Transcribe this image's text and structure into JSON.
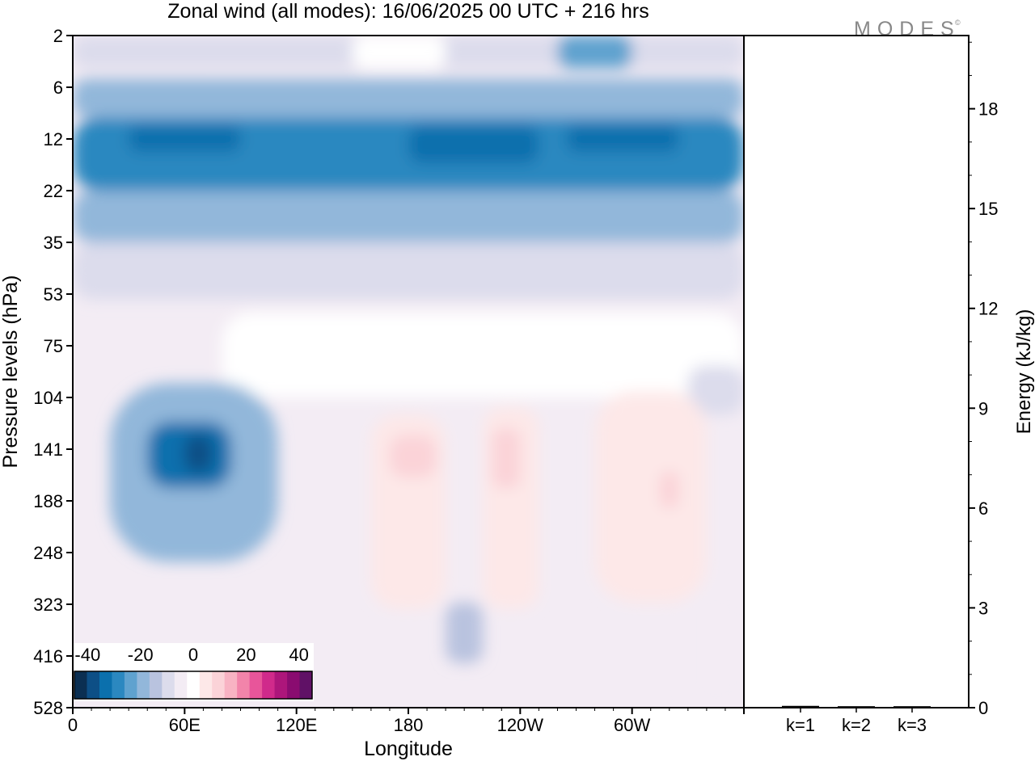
{
  "chart_data": [
    {
      "type": "heatmap",
      "title": "Zonal wind (all modes):  16/06/2025  00 UTC  + 216 hrs",
      "xlabel": "Longitude",
      "ylabel": "Pressure levels (hPa)",
      "x_ticks": [
        "0",
        "60E",
        "120E",
        "180",
        "120W",
        "60W"
      ],
      "x_tick_degrees": [
        0,
        60,
        120,
        180,
        240,
        300
      ],
      "xlim": [
        0,
        360
      ],
      "y_ticks": [
        "2",
        "6",
        "12",
        "22",
        "35",
        "53",
        "75",
        "104",
        "141",
        "188",
        "248",
        "323",
        "416",
        "528"
      ],
      "y_scale": "pressure levels, top to bottom",
      "colorbar": {
        "labels": [
          "-40",
          "-20",
          "0",
          "20",
          "40"
        ],
        "range": [
          -45,
          45
        ],
        "step": 5,
        "colors": [
          "#0b2f52",
          "#0d4f86",
          "#0b70ad",
          "#2b88c0",
          "#5fa2cf",
          "#92b7da",
          "#b9c3df",
          "#dcdcec",
          "#f3ecf4",
          "#ffffff",
          "#fde8e8",
          "#fbd3d8",
          "#f8b3c3",
          "#f284aa",
          "#e8559a",
          "#d02a8b",
          "#ad167b",
          "#8a0c70",
          "#601166"
        ]
      },
      "wind_fields": [
        {
          "lon": [
            0,
            360
          ],
          "plev": [
            2,
            4
          ],
          "value": -8
        },
        {
          "lon": [
            260,
            300
          ],
          "plev": [
            2,
            4
          ],
          "value": -25
        },
        {
          "lon": [
            150,
            200
          ],
          "plev": [
            2,
            4
          ],
          "value": 2
        },
        {
          "lon": [
            0,
            360
          ],
          "plev": [
            5,
            9
          ],
          "value": -18
        },
        {
          "lon": [
            0,
            360
          ],
          "plev": [
            9,
            22
          ],
          "value": -27
        },
        {
          "lon": [
            30,
            90
          ],
          "plev": [
            10,
            14
          ],
          "value": -33
        },
        {
          "lon": [
            180,
            250
          ],
          "plev": [
            10,
            16
          ],
          "value": -33
        },
        {
          "lon": [
            265,
            325
          ],
          "plev": [
            10,
            14
          ],
          "value": -33
        },
        {
          "lon": [
            0,
            360
          ],
          "plev": [
            22,
            35
          ],
          "value": -18
        },
        {
          "lon": [
            0,
            360
          ],
          "plev": [
            35,
            55
          ],
          "value": -6
        },
        {
          "lon": [
            80,
            360
          ],
          "plev": [
            60,
            104
          ],
          "value": 3
        },
        {
          "lon": [
            330,
            360
          ],
          "plev": [
            85,
            115
          ],
          "value": -10
        },
        {
          "lon": [
            20,
            110
          ],
          "plev": [
            95,
            260
          ],
          "value": -18
        },
        {
          "lon": [
            40,
            85
          ],
          "plev": [
            120,
            175
          ],
          "value": -33
        },
        {
          "lon": [
            60,
            75
          ],
          "plev": [
            130,
            160
          ],
          "value": -37
        },
        {
          "lon": [
            160,
            200
          ],
          "plev": [
            115,
            330
          ],
          "value": 8
        },
        {
          "lon": [
            170,
            195
          ],
          "plev": [
            130,
            165
          ],
          "value": 13
        },
        {
          "lon": [
            220,
            250
          ],
          "plev": [
            110,
            330
          ],
          "value": 8
        },
        {
          "lon": [
            225,
            240
          ],
          "plev": [
            125,
            175
          ],
          "value": 13
        },
        {
          "lon": [
            280,
            340
          ],
          "plev": [
            100,
            320
          ],
          "value": 7
        },
        {
          "lon": [
            315,
            325
          ],
          "plev": [
            160,
            195
          ],
          "value": 13
        },
        {
          "lon": [
            200,
            220
          ],
          "plev": [
            320,
            430
          ],
          "value": -12
        },
        {
          "lon": [
            330,
            360
          ],
          "plev": [
            300,
            528
          ],
          "value": -5
        }
      ]
    },
    {
      "type": "bar",
      "categories": [
        "k=1",
        "k=2",
        "k=3"
      ],
      "values": [
        0.03,
        0.02,
        0.02
      ],
      "ylabel": "Energy (kJ/kg)",
      "y_ticks": [
        "0",
        "3",
        "6",
        "9",
        "12",
        "15",
        "18"
      ],
      "ylim": [
        0,
        20.2
      ]
    }
  ],
  "logo": {
    "text": "MODES",
    "mark": "©"
  }
}
